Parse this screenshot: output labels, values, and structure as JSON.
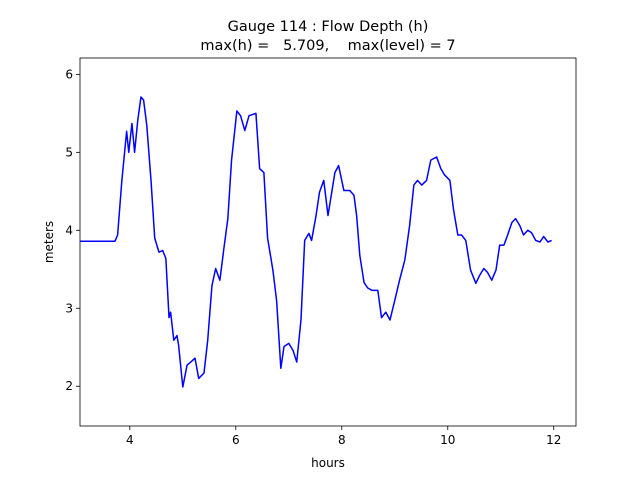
{
  "chart_data": {
    "type": "line",
    "title": "Gauge 114 : Flow Depth (h)",
    "subtitle": "max(h) =   5.709,    max(level) = 7",
    "xlabel": "hours",
    "ylabel": "meters",
    "xlim": [
      3.06,
      12.42
    ],
    "ylim": [
      1.49,
      6.21
    ],
    "xticks": [
      4,
      6,
      8,
      10,
      12
    ],
    "yticks": [
      2,
      3,
      4,
      5,
      6
    ],
    "grid": false,
    "series": [
      {
        "name": "h",
        "color": "#0000ff",
        "x": [
          3.06,
          3.72,
          3.77,
          3.85,
          3.94,
          3.98,
          4.04,
          4.09,
          4.15,
          4.21,
          4.26,
          4.32,
          4.4,
          4.47,
          4.55,
          4.62,
          4.68,
          4.74,
          4.77,
          4.83,
          4.89,
          4.92,
          5.0,
          5.08,
          5.15,
          5.23,
          5.3,
          5.4,
          5.47,
          5.55,
          5.62,
          5.7,
          5.77,
          5.85,
          5.92,
          6.02,
          6.09,
          6.17,
          6.25,
          6.38,
          6.45,
          6.53,
          6.6,
          6.7,
          6.77,
          6.85,
          6.91,
          7.0,
          7.08,
          7.15,
          7.23,
          7.3,
          7.38,
          7.43,
          7.51,
          7.58,
          7.66,
          7.74,
          7.87,
          7.94,
          8.04,
          8.15,
          8.23,
          8.28,
          8.34,
          8.42,
          8.49,
          8.57,
          8.68,
          8.75,
          8.83,
          8.91,
          9.0,
          9.09,
          9.19,
          9.28,
          9.36,
          9.43,
          9.51,
          9.6,
          9.68,
          9.79,
          9.87,
          9.94,
          10.04,
          10.11,
          10.19,
          10.26,
          10.34,
          10.43,
          10.53,
          10.6,
          10.68,
          10.75,
          10.83,
          10.91,
          10.98,
          11.06,
          11.13,
          11.21,
          11.28,
          11.36,
          11.43,
          11.51,
          11.58,
          11.66,
          11.74,
          11.81,
          11.89,
          11.96
        ],
        "values": [
          3.86,
          3.86,
          3.94,
          4.64,
          5.27,
          5.0,
          5.37,
          5.0,
          5.41,
          5.71,
          5.67,
          5.35,
          4.64,
          3.9,
          3.72,
          3.74,
          3.64,
          2.88,
          2.95,
          2.59,
          2.65,
          2.53,
          1.99,
          2.27,
          2.31,
          2.36,
          2.1,
          2.17,
          2.59,
          3.29,
          3.51,
          3.36,
          3.74,
          4.15,
          4.9,
          5.53,
          5.47,
          5.28,
          5.47,
          5.5,
          4.79,
          4.74,
          3.9,
          3.49,
          3.1,
          2.23,
          2.51,
          2.55,
          2.46,
          2.31,
          2.85,
          3.87,
          3.96,
          3.87,
          4.17,
          4.49,
          4.64,
          4.19,
          4.74,
          4.83,
          4.51,
          4.51,
          4.45,
          4.19,
          3.68,
          3.33,
          3.26,
          3.23,
          3.23,
          2.88,
          2.95,
          2.85,
          3.1,
          3.36,
          3.62,
          4.06,
          4.58,
          4.64,
          4.58,
          4.64,
          4.9,
          4.94,
          4.79,
          4.71,
          4.64,
          4.26,
          3.94,
          3.94,
          3.87,
          3.49,
          3.32,
          3.42,
          3.51,
          3.46,
          3.36,
          3.49,
          3.81,
          3.81,
          3.94,
          4.1,
          4.15,
          4.06,
          3.94,
          4.0,
          3.97,
          3.87,
          3.85,
          3.92,
          3.85,
          3.87
        ]
      }
    ]
  }
}
